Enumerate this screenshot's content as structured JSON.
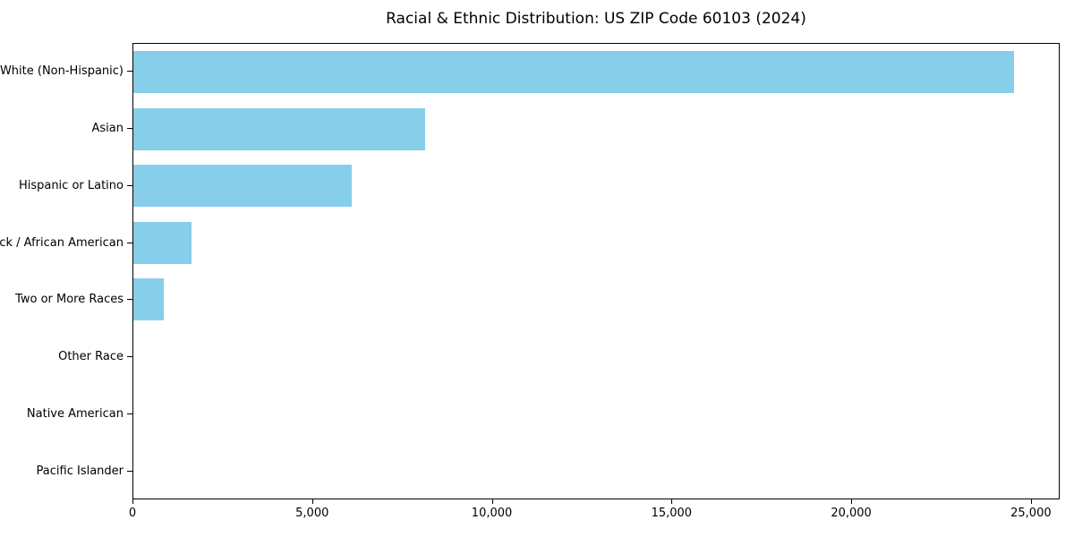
{
  "chart_data": {
    "type": "bar",
    "orientation": "horizontal",
    "title": "Racial & Ethnic Distribution: US ZIP Code 60103 (2024)",
    "categories": [
      "White (Non-Hispanic)",
      "Asian",
      "Hispanic or Latino",
      "Black / African American",
      "Two or More Races",
      "Other Race",
      "Native American",
      "Pacific Islander"
    ],
    "values": [
      24550,
      8130,
      6090,
      1620,
      850,
      0,
      0,
      0
    ],
    "xlabel": "",
    "ylabel": "",
    "xlim": [
      0,
      25800
    ],
    "xticks": [
      0,
      5000,
      10000,
      15000,
      20000,
      25000
    ],
    "xtick_labels": [
      "0",
      "5,000",
      "10,000",
      "15,000",
      "20,000",
      "25,000"
    ],
    "bar_color": "#87CEEB",
    "axis_color": "#000000",
    "background_color": "#ffffff",
    "grid": false,
    "legend_position": "none"
  }
}
